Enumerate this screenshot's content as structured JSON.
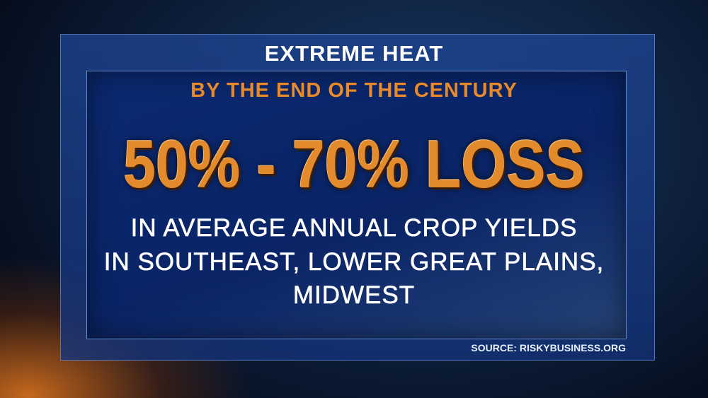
{
  "title": "EXTREME HEAT",
  "subtitle": "BY THE END OF THE CENTURY",
  "headline": "50% - 70% LOSS",
  "body": [
    "IN AVERAGE ANNUAL CROP YIELDS",
    "IN SOUTHEAST, LOWER GREAT PLAINS,",
    "MIDWEST"
  ],
  "source": "SOURCE: RISKYBUSINESS.ORG"
}
